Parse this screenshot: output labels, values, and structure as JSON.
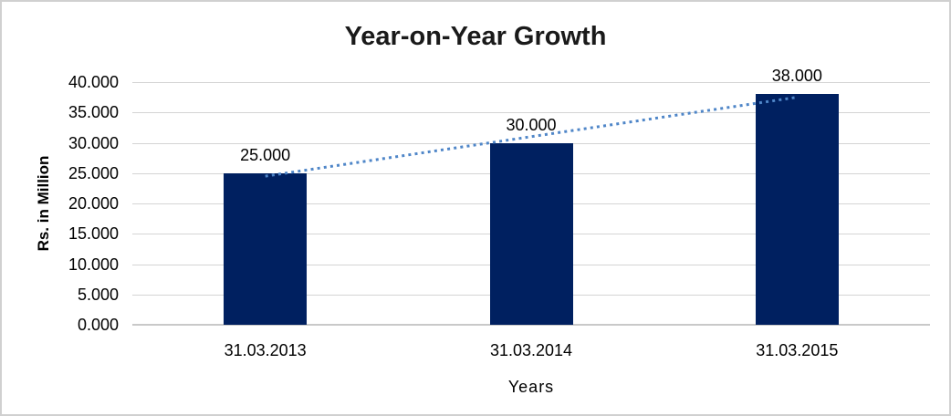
{
  "chart_data": {
    "type": "bar",
    "title": "Year-on-Year Growth",
    "categories": [
      "31.03.2013",
      "31.03.2014",
      "31.03.2015"
    ],
    "values": [
      25.0,
      30.0,
      38.0
    ],
    "data_labels": [
      "25.000",
      "30.000",
      "38.000"
    ],
    "xlabel": "Years",
    "ylabel": "Rs. in Million",
    "ylim": [
      0,
      40
    ],
    "ytick_interval": 5,
    "yticks": [
      "40.000",
      "35.000",
      "30.000",
      "25.000",
      "20.000",
      "15.000",
      "10.000",
      "5.000",
      "0.000"
    ],
    "grid": true,
    "legend": false,
    "colors": {
      "bar": "#002060",
      "trendline": "#4F86C8",
      "gridline": "#D4D4D4",
      "axis_line": "#C9C9C9",
      "text": "#000000",
      "title_text": "#1A1A1A",
      "frame_border": "#D0D0D0",
      "background": "#FFFFFF"
    },
    "trendline": {
      "type": "linear",
      "style": "dotted",
      "color": "#4F86C8",
      "fitted_values": [
        24.5,
        31.0,
        37.5
      ]
    }
  }
}
